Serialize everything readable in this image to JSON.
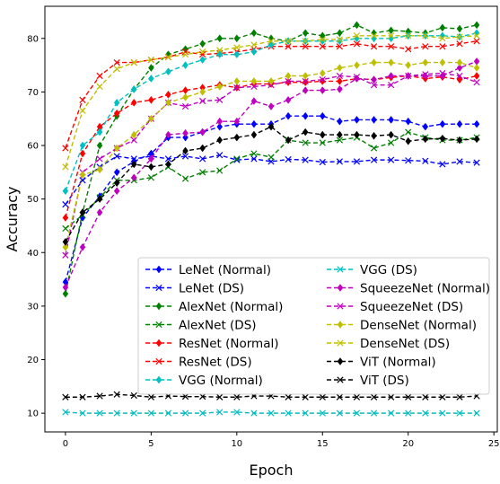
{
  "chart_data": {
    "type": "line",
    "xlabel": "Epoch",
    "ylabel": "Accuracy",
    "xlim": [
      -1.2,
      25.2
    ],
    "ylim": [
      6.5,
      86
    ],
    "x_ticks": [
      0,
      5,
      10,
      15,
      20,
      25
    ],
    "y_ticks": [
      10,
      20,
      30,
      40,
      50,
      60,
      70,
      80
    ],
    "legend_position": "lower-right",
    "legend_columns": 2,
    "x": [
      0,
      1,
      2,
      3,
      4,
      5,
      6,
      7,
      8,
      9,
      10,
      11,
      12,
      13,
      14,
      15,
      16,
      17,
      18,
      19,
      20,
      21,
      22,
      23,
      24
    ],
    "series": [
      {
        "name": "LeNet (Normal)",
        "color": "#0000ff",
        "marker": "diamond",
        "values": [
          34.5,
          46.5,
          50.5,
          55,
          57,
          58.5,
          61.5,
          61.5,
          62.5,
          63.5,
          64,
          64,
          64,
          65.5,
          65.5,
          65.5,
          64.5,
          64.8,
          64.8,
          64.8,
          64.5,
          63.5,
          64,
          64,
          64
        ]
      },
      {
        "name": "LeNet (DS)",
        "color": "#0000ff",
        "marker": "x",
        "values": [
          49,
          53.5,
          56,
          58,
          57.5,
          58,
          57.5,
          58,
          57.5,
          58.2,
          57.3,
          57.5,
          57,
          57.4,
          57.3,
          56.9,
          57,
          57,
          57.3,
          57.3,
          57.2,
          57.1,
          56.5,
          57,
          56.8
        ]
      },
      {
        "name": "AlexNet (Normal)",
        "color": "#008000",
        "marker": "diamond",
        "values": [
          32.3,
          47.5,
          60,
          65.5,
          70.5,
          74.5,
          77,
          78,
          79,
          80,
          80,
          81,
          80,
          79.5,
          81,
          80.5,
          81,
          82.5,
          81,
          81.5,
          81.3,
          81,
          82,
          81.8,
          82.5
        ]
      },
      {
        "name": "AlexNet (DS)",
        "color": "#008000",
        "marker": "x",
        "values": [
          44.5,
          47,
          50.3,
          53.5,
          53.5,
          54,
          56,
          53.8,
          55,
          55.3,
          57.5,
          58.5,
          57.8,
          61,
          60.5,
          60.5,
          61,
          61.5,
          59.5,
          60.5,
          62.5,
          61.5,
          61,
          61,
          61.5
        ]
      },
      {
        "name": "ResNet (Normal)",
        "color": "#ff0000",
        "marker": "diamond",
        "values": [
          46.5,
          58.5,
          63.5,
          66,
          68,
          68.5,
          69.5,
          70.3,
          70.8,
          71.3,
          70.8,
          71.5,
          71.5,
          71.8,
          71.8,
          72,
          72,
          72.5,
          72.3,
          72.7,
          73,
          72.5,
          72.8,
          72.3,
          73
        ]
      },
      {
        "name": "ResNet (DS)",
        "color": "#ff0000",
        "marker": "x",
        "values": [
          59.5,
          68.5,
          73,
          75.5,
          75.5,
          76,
          76.5,
          77.5,
          77,
          77.2,
          77.5,
          78,
          78.5,
          78.5,
          78.5,
          78.5,
          78.5,
          79,
          78.5,
          78.5,
          78,
          78.5,
          78.5,
          79,
          79.5
        ]
      },
      {
        "name": "VGG (Normal)",
        "color": "#00bfbf",
        "marker": "diamond",
        "values": [
          51.5,
          60,
          62.5,
          68,
          70.5,
          72.5,
          73.8,
          75,
          76,
          77,
          77,
          77.5,
          78.8,
          79.5,
          79.5,
          79.5,
          79.5,
          80,
          80,
          80,
          80.5,
          80.5,
          80.5,
          80.3,
          81
        ]
      },
      {
        "name": "VGG (DS)",
        "color": "#00bfbf",
        "marker": "x",
        "values": [
          10.2,
          10,
          10,
          10,
          10,
          10,
          10,
          10,
          10,
          10.2,
          10.2,
          10,
          10,
          10,
          10,
          10,
          10,
          10,
          10,
          10,
          10,
          10,
          10,
          10,
          10
        ]
      },
      {
        "name": "SqueezeNet (Normal)",
        "color": "#bf00bf",
        "marker": "diamond",
        "values": [
          33.5,
          41,
          47.5,
          51.5,
          54,
          57.5,
          62,
          62.3,
          62.5,
          64.5,
          64.5,
          68.3,
          67.3,
          68.5,
          70.3,
          70.3,
          70.5,
          72.5,
          72.3,
          73,
          73,
          73,
          73,
          74.5,
          75.7
        ]
      },
      {
        "name": "SqueezeNet (DS)",
        "color": "#bf00bf",
        "marker": "x",
        "values": [
          39.5,
          55,
          57.5,
          59.5,
          61,
          65,
          68,
          67.3,
          68.3,
          68.5,
          70.8,
          71,
          71.3,
          72,
          72,
          72.3,
          73,
          72.8,
          71.3,
          71.3,
          73,
          73.3,
          73.5,
          73,
          71.8
        ]
      },
      {
        "name": "DenseNet (Normal)",
        "color": "#bfbf00",
        "marker": "diamond",
        "values": [
          41,
          54.5,
          55.5,
          59.5,
          62,
          65,
          68,
          69,
          70,
          71,
          72,
          72,
          72,
          73,
          73,
          73.5,
          74.5,
          75,
          75.5,
          75.5,
          75,
          75.5,
          75.5,
          75.5,
          74.5
        ]
      },
      {
        "name": "DenseNet (DS)",
        "color": "#bfbf00",
        "marker": "x",
        "values": [
          56,
          66.5,
          71,
          74.3,
          75.5,
          76,
          76.5,
          77,
          77.5,
          77.8,
          78.3,
          78.8,
          79.5,
          79.5,
          79.5,
          79.8,
          79.8,
          80.5,
          80.5,
          80.5,
          80.5,
          80.5,
          80,
          80.3,
          80.5
        ]
      },
      {
        "name": "ViT (Normal)",
        "color": "#000000",
        "marker": "diamond",
        "values": [
          42,
          47.5,
          50,
          53,
          56.5,
          56,
          56.5,
          59,
          59.5,
          61,
          61.5,
          62,
          63.5,
          61,
          62.5,
          62,
          62,
          62,
          61.8,
          62,
          60.8,
          61.2,
          61.3,
          61,
          61.2
        ]
      },
      {
        "name": "ViT (DS)",
        "color": "#000000",
        "marker": "x",
        "values": [
          13,
          13,
          13.2,
          13.5,
          13.3,
          13,
          13.2,
          13.1,
          13.1,
          13,
          13,
          13.2,
          13.2,
          13,
          13,
          13,
          13,
          13,
          13,
          13,
          13,
          13,
          13,
          13,
          13.2
        ]
      }
    ]
  }
}
